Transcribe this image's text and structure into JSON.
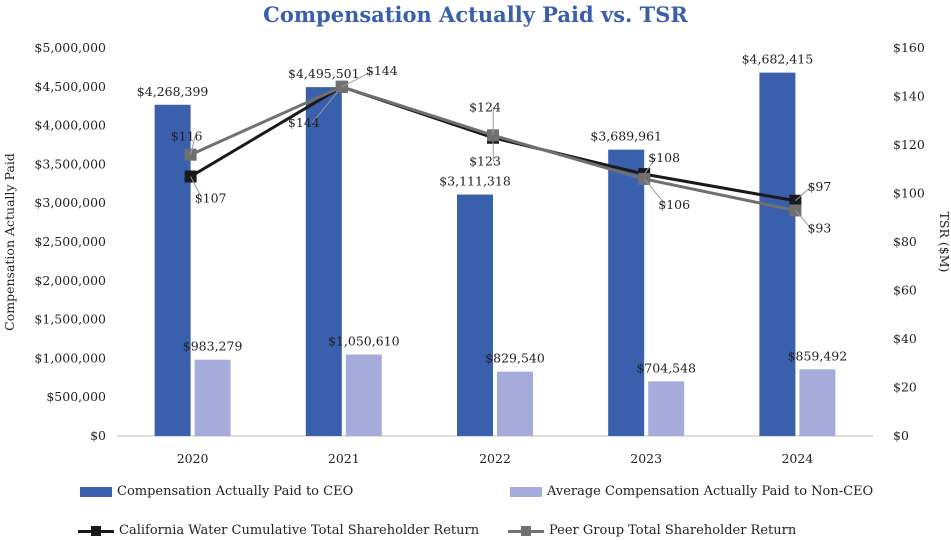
{
  "chart_data": {
    "type": "bar",
    "title": "Compensation Actually Paid vs. TSR",
    "categories": [
      "2020",
      "2021",
      "2022",
      "2023",
      "2024"
    ],
    "ylabel": "Compensation Actually Paid",
    "y2label": "TSR ($M)",
    "ylim": [
      0,
      5000000
    ],
    "y2lim": [
      0,
      160
    ],
    "y_ticks": [
      "$0",
      "$500,000",
      "$1,000,000",
      "$1,500,000",
      "$2,000,000",
      "$2,500,000",
      "$3,000,000",
      "$3,500,000",
      "$4,000,000",
      "$4,500,000",
      "$5,000,000"
    ],
    "y2_ticks": [
      "$0",
      "$20",
      "$40",
      "$60",
      "$80",
      "$100",
      "$120",
      "$140",
      "$160"
    ],
    "bar_series": [
      {
        "name": "Compensation Actually Paid to CEO",
        "color": "#3a5fad",
        "values": [
          4268399,
          4495501,
          3111318,
          3689961,
          4682415
        ],
        "labels": [
          "$4,268,399",
          "$4,495,501",
          "$3,111,318",
          "$3,689,961",
          "$4,682,415"
        ]
      },
      {
        "name": "Average Compensation Actually Paid to Non-CEO",
        "color": "#a5acdb",
        "values": [
          983279,
          1050610,
          829540,
          704548,
          859492
        ],
        "labels": [
          "$983,279",
          "$1,050,610",
          "$829,540",
          "$704,548",
          "$859,492"
        ]
      }
    ],
    "line_series": [
      {
        "name": "California Water Cumulative Total Shareholder Return",
        "color": "#1a1a1a",
        "values": [
          107,
          144,
          123,
          108,
          97
        ],
        "labels": [
          "$107",
          "$144",
          "$123",
          "$108",
          "$97"
        ]
      },
      {
        "name": "Peer Group Total Shareholder Return",
        "color": "#707070",
        "values": [
          116,
          144,
          124,
          106,
          93
        ],
        "labels": [
          "$116",
          "$144",
          "$124",
          "$106",
          "$93"
        ]
      }
    ],
    "legend": [
      "Compensation Actually Paid to CEO",
      "Average Compensation Actually Paid to Non-CEO",
      "California Water Cumulative Total Shareholder Return",
      "Peer Group Total Shareholder Return"
    ]
  }
}
